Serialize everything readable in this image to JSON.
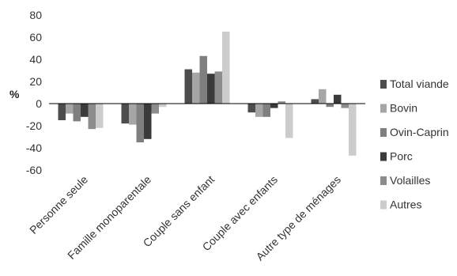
{
  "chart_data": {
    "type": "bar",
    "ylabel": "%",
    "ylim": [
      -60,
      80
    ],
    "yticks": [
      80,
      60,
      40,
      20,
      0,
      -20,
      -40,
      -60
    ],
    "grid": false,
    "legend_position": "right",
    "categories": [
      "Personne seule",
      "Famille monoparentale",
      "Couple sans enfant",
      "Couple avec enfants",
      "Autre type de ménages"
    ],
    "series": [
      {
        "name": "Total viande",
        "color": "#4d4d4d",
        "values": [
          -15,
          -18,
          31,
          -8,
          4
        ]
      },
      {
        "name": "Bovin",
        "color": "#a6a6a6",
        "values": [
          -9,
          -19,
          28,
          -12,
          13
        ]
      },
      {
        "name": "Ovin-Caprin",
        "color": "#7f7f7f",
        "values": [
          -16,
          -35,
          43,
          -12,
          -3
        ]
      },
      {
        "name": "Porc",
        "color": "#3a3a3a",
        "values": [
          -12,
          -32,
          27,
          -4,
          8
        ]
      },
      {
        "name": "Volailles",
        "color": "#8c8c8c",
        "values": [
          -23,
          -9,
          29,
          2,
          -4
        ]
      },
      {
        "name": "Autres",
        "color": "#cccccc",
        "values": [
          -22,
          -3,
          65,
          -31,
          -47
        ]
      }
    ]
  }
}
